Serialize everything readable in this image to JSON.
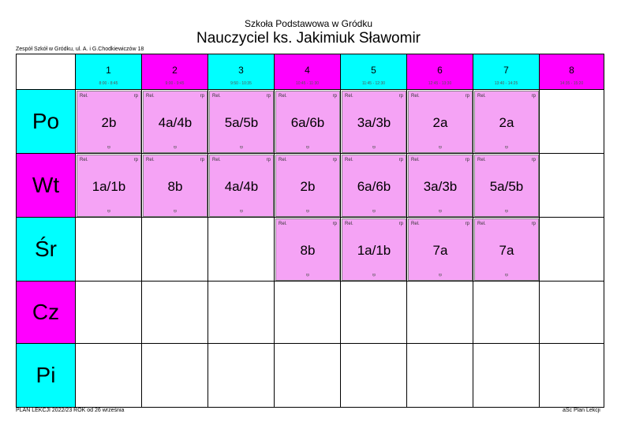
{
  "header": {
    "school": "Szkoła Podstawowa w Gródku",
    "teacher": "Nauczyciel ks. Jakimiuk Sławomir",
    "address": "Zespół Szkół w Gródku, ul. A. i G.Chodkiewiczów 18"
  },
  "footer": {
    "left": "PLAN LEKCJI  2022/23  ROK od 26 września",
    "right": "aSc Plan Lekcji"
  },
  "colors": {
    "cyan": "#00ffff",
    "magenta": "#ff00ff",
    "lesson": "#f5a3f5"
  },
  "periods": [
    {
      "num": "1",
      "time": "8:00 - 8:45",
      "color": "cyan"
    },
    {
      "num": "2",
      "time": "9:00 - 9:45",
      "color": "magenta"
    },
    {
      "num": "3",
      "time": "9:50 - 10:35",
      "color": "cyan"
    },
    {
      "num": "4",
      "time": "10:45 - 11:30",
      "color": "magenta"
    },
    {
      "num": "5",
      "time": "11:45 - 12:30",
      "color": "cyan"
    },
    {
      "num": "6",
      "time": "12:45 - 13:30",
      "color": "magenta"
    },
    {
      "num": "7",
      "time": "13:40 - 14:25",
      "color": "cyan"
    },
    {
      "num": "8",
      "time": "14:35 - 15:20",
      "color": "magenta"
    }
  ],
  "days": [
    {
      "label": "Po",
      "color": "cyan",
      "lessons": [
        {
          "period": 1,
          "subject": "Rel.",
          "room": "rp",
          "class": "2b",
          "teacher": "rp"
        },
        {
          "period": 2,
          "subject": "Rel.",
          "room": "rp",
          "class": "4a/4b",
          "teacher": "rp"
        },
        {
          "period": 3,
          "subject": "Rel.",
          "room": "rp",
          "class": "5a/5b",
          "teacher": "rp"
        },
        {
          "period": 4,
          "subject": "Rel.",
          "room": "rp",
          "class": "6a/6b",
          "teacher": "rp"
        },
        {
          "period": 5,
          "subject": "Rel.",
          "room": "rp",
          "class": "3a/3b",
          "teacher": "rp"
        },
        {
          "period": 6,
          "subject": "Rel.",
          "room": "rp",
          "class": "2a",
          "teacher": "rp"
        },
        {
          "period": 7,
          "subject": "Rel.",
          "room": "rp",
          "class": "2a",
          "teacher": "rp"
        }
      ]
    },
    {
      "label": "Wt",
      "color": "magenta",
      "lessons": [
        {
          "period": 1,
          "subject": "Rel.",
          "room": "rp",
          "class": "1a/1b",
          "teacher": "rp"
        },
        {
          "period": 2,
          "subject": "Rel.",
          "room": "rp",
          "class": "8b",
          "teacher": "rp"
        },
        {
          "period": 3,
          "subject": "Rel.",
          "room": "rp",
          "class": "4a/4b",
          "teacher": "rp"
        },
        {
          "period": 4,
          "subject": "Rel.",
          "room": "rp",
          "class": "2b",
          "teacher": "rp"
        },
        {
          "period": 5,
          "subject": "Rel.",
          "room": "rp",
          "class": "6a/6b",
          "teacher": "rp"
        },
        {
          "period": 6,
          "subject": "Rel.",
          "room": "rp",
          "class": "3a/3b",
          "teacher": "rp"
        },
        {
          "period": 7,
          "subject": "Rel.",
          "room": "rp",
          "class": "5a/5b",
          "teacher": "rp"
        }
      ]
    },
    {
      "label": "Śr",
      "color": "cyan",
      "lessons": [
        {
          "period": 4,
          "subject": "Rel.",
          "room": "rp",
          "class": "8b",
          "teacher": "rp"
        },
        {
          "period": 5,
          "subject": "Rel.",
          "room": "rp",
          "class": "1a/1b",
          "teacher": "rp"
        },
        {
          "period": 6,
          "subject": "Rel.",
          "room": "rp",
          "class": "7a",
          "teacher": "rp"
        },
        {
          "period": 7,
          "subject": "Rel.",
          "room": "rp",
          "class": "7a",
          "teacher": "rp"
        }
      ]
    },
    {
      "label": "Cz",
      "color": "magenta",
      "lessons": []
    },
    {
      "label": "Pi",
      "color": "cyan",
      "lessons": []
    }
  ]
}
